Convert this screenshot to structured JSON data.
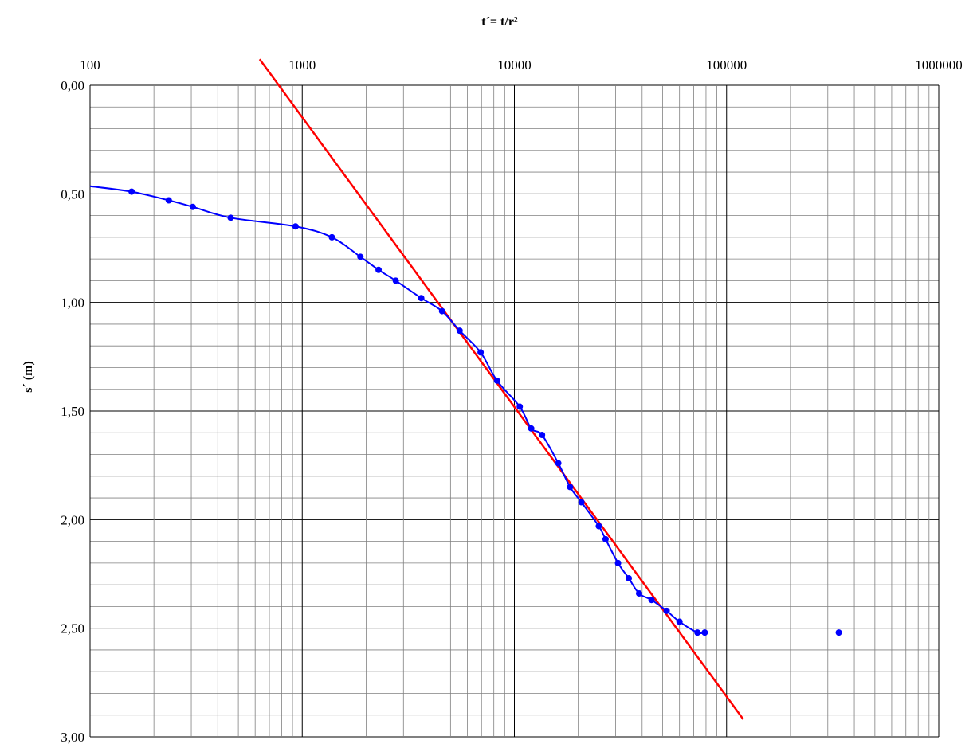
{
  "chart_data": {
    "type": "scatter",
    "title": "",
    "xlabel": "t´= t/r²",
    "ylabel": "s´ (m)",
    "x_scale": "log",
    "x_axis_position": "top",
    "y_inverted": true,
    "xlim": [
      100,
      1000000
    ],
    "ylim": [
      0,
      3
    ],
    "x_ticks": [
      "100",
      "1000",
      "10000",
      "100000",
      "1000000"
    ],
    "y_ticks": [
      "0,00",
      "0,50",
      "1,00",
      "1,50",
      "2,00",
      "2,50",
      "3,00"
    ],
    "grid": true,
    "colors": {
      "data": "#0000ff",
      "fit": "#ff0000",
      "grid_major": "#000000",
      "grid_minor": "#808080"
    },
    "series": [
      {
        "marker": "circle",
        "line": "smooth",
        "color": "#0000ff",
        "points": [
          [
            157,
            0.49
          ],
          [
            235,
            0.53
          ],
          [
            305,
            0.56
          ],
          [
            460,
            0.61
          ],
          [
            930,
            0.65
          ],
          [
            1380,
            0.7
          ],
          [
            1880,
            0.79
          ],
          [
            2290,
            0.85
          ],
          [
            2760,
            0.9
          ],
          [
            3640,
            0.98
          ],
          [
            4560,
            1.04
          ],
          [
            5520,
            1.13
          ],
          [
            6930,
            1.23
          ],
          [
            8280,
            1.36
          ],
          [
            10600,
            1.48
          ],
          [
            12000,
            1.58
          ],
          [
            13500,
            1.61
          ],
          [
            16100,
            1.74
          ],
          [
            18300,
            1.85
          ],
          [
            20700,
            1.92
          ],
          [
            25000,
            2.03
          ],
          [
            26900,
            2.09
          ],
          [
            30800,
            2.2
          ],
          [
            34600,
            2.27
          ],
          [
            38700,
            2.34
          ],
          [
            44300,
            2.37
          ],
          [
            52200,
            2.42
          ],
          [
            60000,
            2.47
          ],
          [
            72900,
            2.52
          ],
          [
            78900,
            2.52
          ]
        ],
        "leading_extension": [
          [
            100,
            0.465
          ]
        ]
      },
      {
        "marker": "circle",
        "line": "none",
        "color": "#0000ff",
        "points": [
          [
            338000,
            2.52
          ]
        ]
      },
      {
        "marker": "none",
        "line": "straight",
        "color": "#ff0000",
        "points": [
          [
            630,
            -0.12
          ],
          [
            120000,
            2.92
          ]
        ]
      }
    ]
  }
}
